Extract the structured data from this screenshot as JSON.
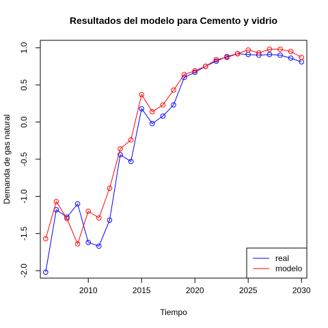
{
  "chart_data": {
    "type": "line",
    "title": "Resultados del modelo para Cemento y vidrio",
    "xlabel": "Tiempo",
    "ylabel": "Demanda de gas natural",
    "xlim": [
      2005.5,
      2030.5
    ],
    "ylim": [
      -2.1,
      1.1
    ],
    "x_ticks": [
      2010,
      2015,
      2020,
      2025,
      2030
    ],
    "x_tick_labels": [
      "2010",
      "2015",
      "2020",
      "2025",
      "2030"
    ],
    "y_ticks": [
      -2.0,
      -1.5,
      -1.0,
      -0.5,
      0.0,
      0.5,
      1.0
    ],
    "y_tick_labels": [
      "-2.0",
      "-1.5",
      "-1.0",
      "-0.5",
      "0.0",
      "0.5",
      "1.0"
    ],
    "grid": false,
    "legend_position": "bottom-right",
    "x": [
      2006,
      2007,
      2008,
      2009,
      2010,
      2011,
      2012,
      2013,
      2014,
      2015,
      2016,
      2017,
      2018,
      2019,
      2020,
      2021,
      2022,
      2023,
      2024,
      2025,
      2026,
      2027,
      2028,
      2029,
      2030
    ],
    "series": [
      {
        "name": "real",
        "color": "#0000ff",
        "values": [
          -2.02,
          -1.18,
          -1.28,
          -1.1,
          -1.62,
          -1.67,
          -1.32,
          -0.44,
          -0.53,
          0.18,
          -0.02,
          0.08,
          0.23,
          0.6,
          0.67,
          0.75,
          0.82,
          0.88,
          0.92,
          0.91,
          0.9,
          0.91,
          0.9,
          0.86,
          0.81
        ]
      },
      {
        "name": "modelo",
        "color": "#ff0000",
        "values": [
          -1.57,
          -1.07,
          -1.3,
          -1.64,
          -1.2,
          -1.29,
          -0.89,
          -0.36,
          -0.24,
          0.37,
          0.14,
          0.23,
          0.43,
          0.64,
          0.69,
          0.75,
          0.84,
          0.87,
          0.92,
          0.97,
          0.93,
          0.98,
          0.98,
          0.95,
          0.87
        ]
      }
    ]
  }
}
